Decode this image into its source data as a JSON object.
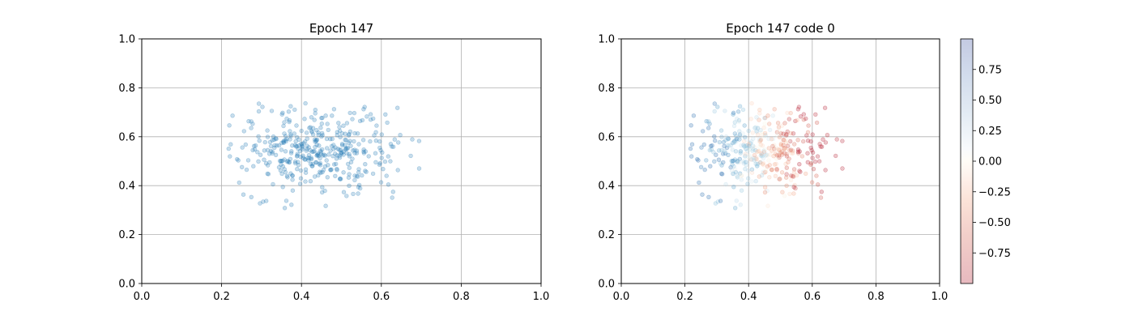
{
  "chart_data": [
    {
      "type": "scatter",
      "title": "Epoch 147",
      "xlabel": "",
      "ylabel": "",
      "xlim": [
        0.0,
        1.0
      ],
      "ylim": [
        0.0,
        1.0
      ],
      "xticks": [
        "0.0",
        "0.2",
        "0.4",
        "0.6",
        "0.8",
        "1.0"
      ],
      "yticks": [
        "0.0",
        "0.2",
        "0.4",
        "0.6",
        "0.8",
        "1.0"
      ],
      "grid": true,
      "point_color": "#1f77b4",
      "point_alpha": 0.25,
      "x_center": 0.44,
      "y_center": 0.54,
      "x_spread": 0.105,
      "y_spread": 0.09,
      "point_count": 400,
      "point_range": {
        "x": [
          0.2,
          0.7
        ],
        "y": [
          0.26,
          0.74
        ]
      }
    },
    {
      "type": "scatter",
      "title": "Epoch 147 code 0",
      "xlabel": "",
      "ylabel": "",
      "xlim": [
        0.0,
        1.0
      ],
      "ylim": [
        0.0,
        1.0
      ],
      "xticks": [
        "0.0",
        "0.2",
        "0.4",
        "0.6",
        "0.8",
        "1.0"
      ],
      "yticks": [
        "0.0",
        "0.2",
        "0.4",
        "0.6",
        "0.8",
        "1.0"
      ],
      "grid": true,
      "colormap": "RdBu",
      "point_alpha": 0.25,
      "color_trend": "blue on the left (high values), red on the right (low values)",
      "colorbar": {
        "range": [
          -1.0,
          1.0
        ],
        "ticks": [
          "0.75",
          "0.50",
          "0.25",
          "0.00",
          "−0.25",
          "−0.50",
          "−0.75"
        ],
        "tick_values": [
          0.75,
          0.5,
          0.25,
          0.0,
          -0.25,
          -0.5,
          -0.75
        ]
      },
      "x_center": 0.44,
      "y_center": 0.54,
      "x_spread": 0.105,
      "y_spread": 0.09,
      "point_count": 400,
      "point_range": {
        "x": [
          0.2,
          0.7
        ],
        "y": [
          0.26,
          0.74
        ]
      }
    }
  ]
}
